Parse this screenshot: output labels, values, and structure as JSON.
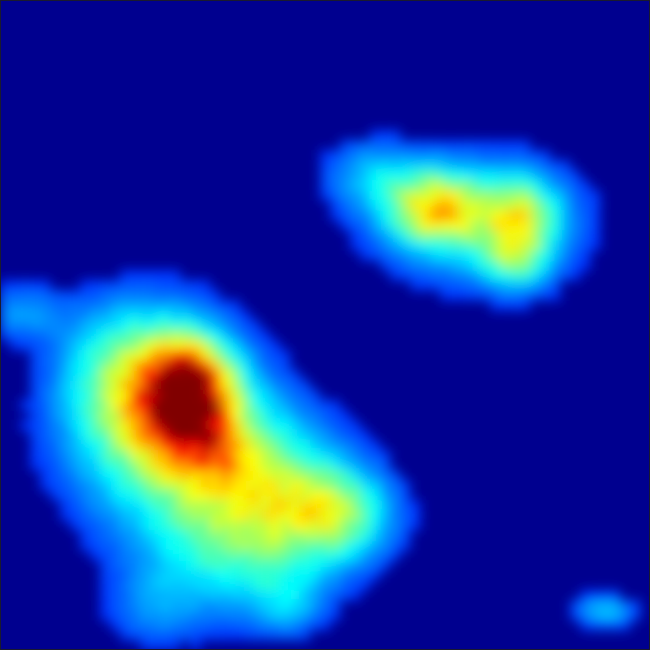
{
  "chart_data": {
    "type": "heatmap",
    "title": "",
    "xlabel": "",
    "ylabel": "",
    "xlim": [
      0,
      1
    ],
    "ylim": [
      0,
      1
    ],
    "colormap": "jet",
    "background_color": "#00008f",
    "blobs": [
      {
        "x": 0.29,
        "y": 0.39,
        "sx": 0.045,
        "sy": 0.055,
        "amp": 0.72
      },
      {
        "x": 0.34,
        "y": 0.3,
        "sx": 0.03,
        "sy": 0.03,
        "amp": 0.12
      },
      {
        "x": 0.25,
        "y": 0.35,
        "sx": 0.1,
        "sy": 0.1,
        "amp": 0.48
      },
      {
        "x": 0.2,
        "y": 0.44,
        "sx": 0.07,
        "sy": 0.07,
        "amp": 0.22
      },
      {
        "x": 0.4,
        "y": 0.25,
        "sx": 0.09,
        "sy": 0.08,
        "amp": 0.38
      },
      {
        "x": 0.52,
        "y": 0.21,
        "sx": 0.06,
        "sy": 0.05,
        "amp": 0.34
      },
      {
        "x": 0.36,
        "y": 0.14,
        "sx": 0.11,
        "sy": 0.07,
        "amp": 0.2
      },
      {
        "x": 0.44,
        "y": 0.07,
        "sx": 0.04,
        "sy": 0.035,
        "amp": 0.14
      },
      {
        "x": 0.24,
        "y": 0.06,
        "sx": 0.05,
        "sy": 0.04,
        "amp": 0.12
      },
      {
        "x": 0.03,
        "y": 0.52,
        "sx": 0.05,
        "sy": 0.03,
        "amp": 0.16
      },
      {
        "x": 0.67,
        "y": 0.68,
        "sx": 0.05,
        "sy": 0.04,
        "amp": 0.44
      },
      {
        "x": 0.8,
        "y": 0.66,
        "sx": 0.04,
        "sy": 0.045,
        "amp": 0.36
      },
      {
        "x": 0.74,
        "y": 0.66,
        "sx": 0.11,
        "sy": 0.07,
        "amp": 0.25
      },
      {
        "x": 0.79,
        "y": 0.59,
        "sx": 0.035,
        "sy": 0.03,
        "amp": 0.18
      },
      {
        "x": 0.57,
        "y": 0.73,
        "sx": 0.05,
        "sy": 0.04,
        "amp": 0.18
      },
      {
        "x": 0.93,
        "y": 0.06,
        "sx": 0.035,
        "sy": 0.018,
        "amp": 0.22
      }
    ]
  }
}
